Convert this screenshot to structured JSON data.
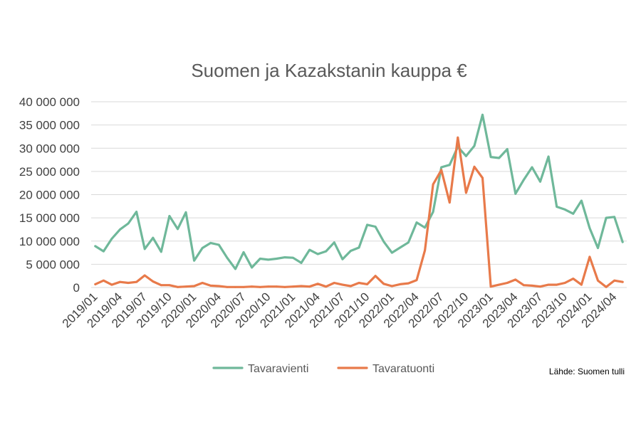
{
  "chart_data": {
    "type": "line",
    "title": "Suomen ja Kazakstanin kauppa €",
    "source": "Lähde: Suomen tulli",
    "ylim": [
      0,
      40000000
    ],
    "y_ticks": [
      0,
      5000000,
      10000000,
      15000000,
      20000000,
      25000000,
      30000000,
      35000000,
      40000000
    ],
    "y_tick_labels": [
      "0",
      "5 000 000",
      "10 000 000",
      "15 000 000",
      "20 000 000",
      "25 000 000",
      "30 000 000",
      "35 000 000",
      "40 000 000"
    ],
    "grid": true,
    "legend_position": "bottom",
    "x_tick_labels": [
      "2019/01",
      "2019/04",
      "2019/07",
      "2019/10",
      "2020/01",
      "2020/04",
      "2020/07",
      "2020/10",
      "2021/01",
      "2021/04",
      "2021/07",
      "2021/10",
      "2022/01",
      "2022/04",
      "2022/07",
      "2022/10",
      "2023/01",
      "2023/04",
      "2023/07",
      "2023/10",
      "2024/01",
      "2024/04"
    ],
    "x": [
      "2019/01",
      "2019/02",
      "2019/03",
      "2019/04",
      "2019/05",
      "2019/06",
      "2019/07",
      "2019/08",
      "2019/09",
      "2019/10",
      "2019/11",
      "2019/12",
      "2020/01",
      "2020/02",
      "2020/03",
      "2020/04",
      "2020/05",
      "2020/06",
      "2020/07",
      "2020/08",
      "2020/09",
      "2020/10",
      "2020/11",
      "2020/12",
      "2021/01",
      "2021/02",
      "2021/03",
      "2021/04",
      "2021/05",
      "2021/06",
      "2021/07",
      "2021/08",
      "2021/09",
      "2021/10",
      "2021/11",
      "2021/12",
      "2022/01",
      "2022/02",
      "2022/03",
      "2022/04",
      "2022/05",
      "2022/06",
      "2022/07",
      "2022/08",
      "2022/09",
      "2022/10",
      "2022/11",
      "2022/12",
      "2023/01",
      "2023/02",
      "2023/03",
      "2023/04",
      "2023/05",
      "2023/06",
      "2023/07",
      "2023/08",
      "2023/09",
      "2023/10",
      "2023/11",
      "2023/12",
      "2024/01",
      "2024/02",
      "2024/03",
      "2024/04",
      "2024/05"
    ],
    "series": [
      {
        "name": "Tavaravienti",
        "color": "#6fb89a",
        "values": [
          8900000,
          7800000,
          10500000,
          12500000,
          13800000,
          16300000,
          8300000,
          10700000,
          7700000,
          15400000,
          12600000,
          16200000,
          5800000,
          8500000,
          9600000,
          9200000,
          6400000,
          4000000,
          7600000,
          4300000,
          6200000,
          6000000,
          6200000,
          6500000,
          6400000,
          5300000,
          8100000,
          7200000,
          7800000,
          9700000,
          6100000,
          7900000,
          8600000,
          13500000,
          13100000,
          9900000,
          7500000,
          8600000,
          9700000,
          14000000,
          12900000,
          16300000,
          25900000,
          26400000,
          30300000,
          28300000,
          30500000,
          37200000,
          28100000,
          27900000,
          29800000,
          20200000,
          23200000,
          25900000,
          22800000,
          28200000,
          17400000,
          16800000,
          15900000,
          18700000,
          12800000,
          8500000,
          15000000,
          15200000,
          9800000
        ]
      },
      {
        "name": "Tavaratuonti",
        "color": "#e87a4a",
        "values": [
          700000,
          1500000,
          600000,
          1200000,
          1000000,
          1200000,
          2600000,
          1300000,
          500000,
          500000,
          100000,
          200000,
          300000,
          1000000,
          400000,
          300000,
          100000,
          100000,
          100000,
          200000,
          100000,
          200000,
          200000,
          100000,
          200000,
          300000,
          200000,
          800000,
          200000,
          1000000,
          600000,
          300000,
          1000000,
          700000,
          2500000,
          800000,
          300000,
          700000,
          900000,
          1600000,
          8000000,
          22200000,
          25300000,
          18300000,
          32300000,
          20400000,
          26000000,
          23600000,
          200000,
          600000,
          1000000,
          1700000,
          500000,
          400000,
          200000,
          600000,
          600000,
          1000000,
          1900000,
          600000,
          6600000,
          1500000,
          100000,
          1500000,
          1200000
        ]
      }
    ]
  }
}
